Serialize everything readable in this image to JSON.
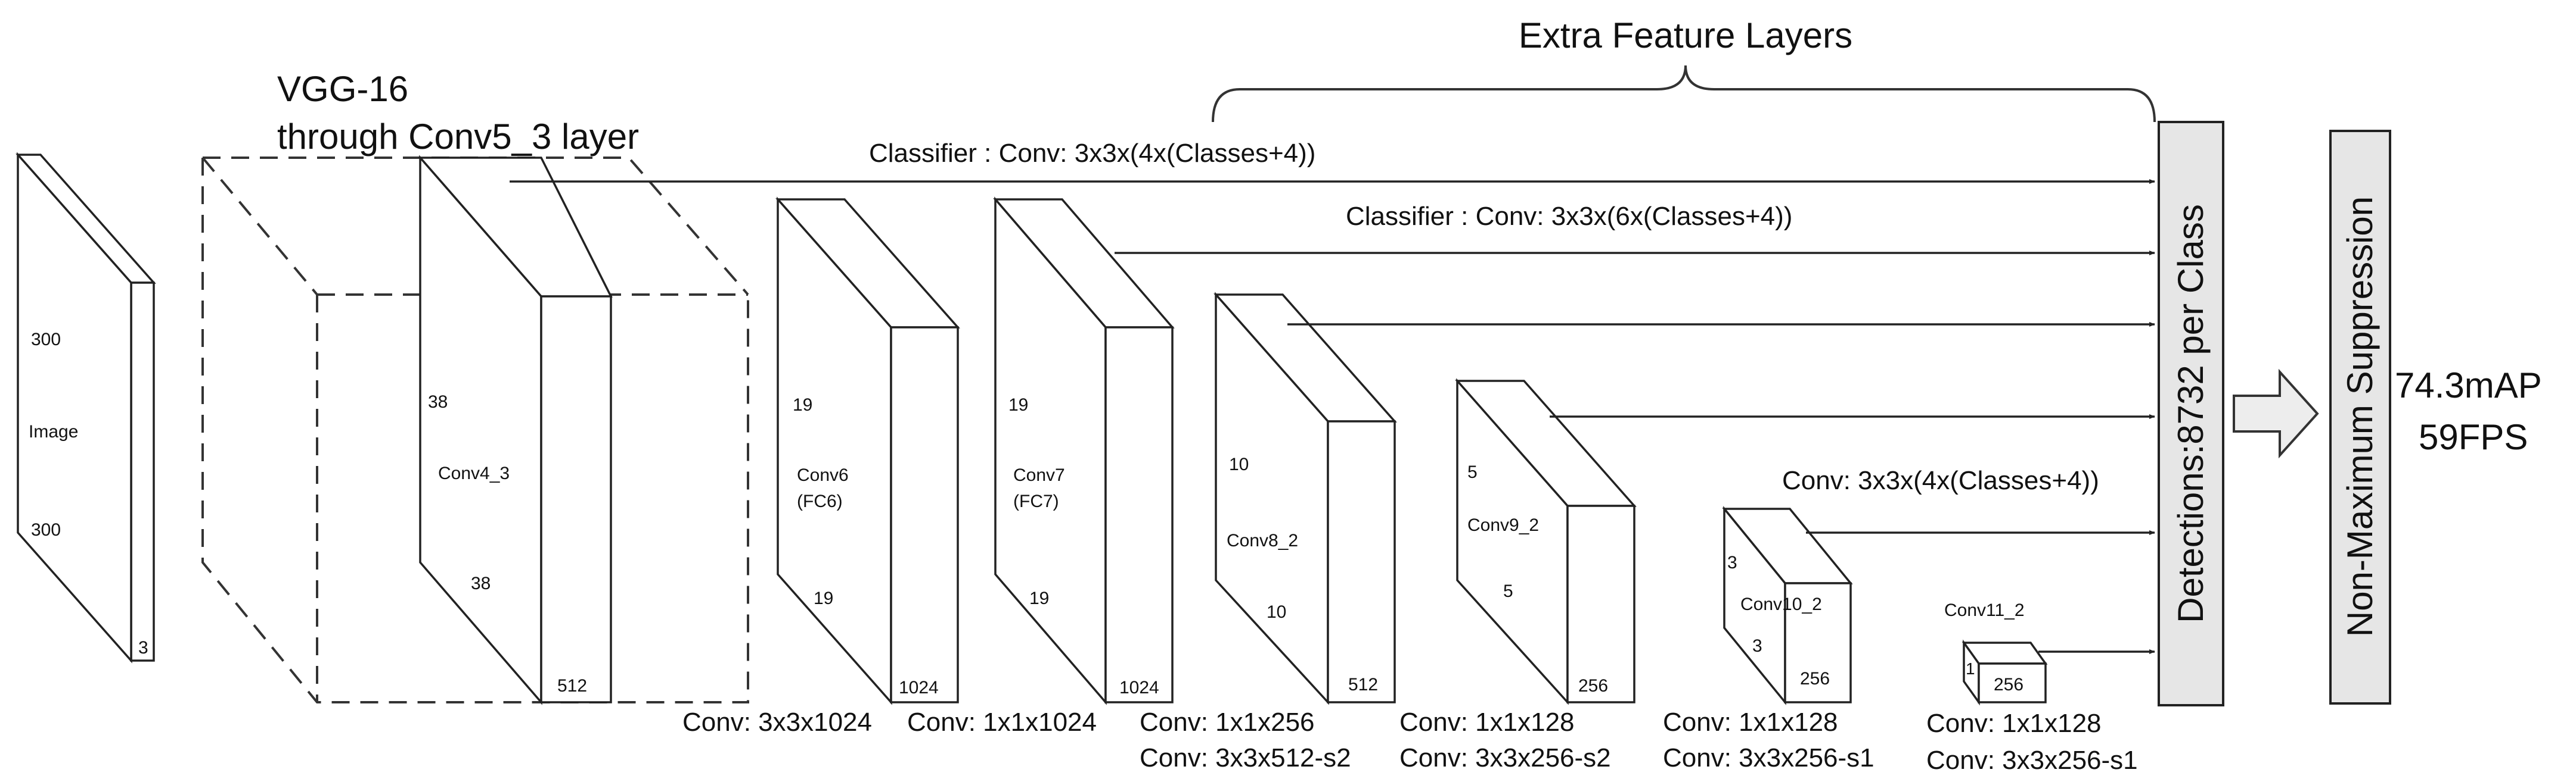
{
  "title": "Extra Feature Layers",
  "vgg": {
    "line1": "VGG-16",
    "line2": "through Conv5_3 layer"
  },
  "image_block": {
    "label": "Image",
    "height": "300",
    "width": "300",
    "depth": "3"
  },
  "blocks": {
    "conv4_3": {
      "label": "Conv4_3",
      "h": "38",
      "w": "38",
      "d": "512"
    },
    "conv6": {
      "label": "Conv6",
      "sub": "(FC6)",
      "h": "19",
      "w": "19",
      "d": "1024"
    },
    "conv7": {
      "label": "Conv7",
      "sub": "(FC7)",
      "h": "19",
      "w": "19",
      "d": "1024"
    },
    "conv8_2": {
      "label": "Conv8_2",
      "h": "10",
      "w": "10",
      "d": "512"
    },
    "conv9_2": {
      "label": "Conv9_2",
      "h": "5",
      "w": "5",
      "d": "256"
    },
    "conv10_2": {
      "label": "Conv10_2",
      "h": "3",
      "w": "3",
      "d": "256"
    },
    "conv11_2": {
      "label": "Conv11_2",
      "h": "1",
      "d": "256"
    }
  },
  "classifiers": {
    "c1": "Classifier : Conv: 3x3x(4x(Classes+4))",
    "c2": "Classifier : Conv: 3x3x(6x(Classes+4))",
    "c3": "Conv: 3x3x(4x(Classes+4))"
  },
  "captions": {
    "conv6_a": "Conv: 3x3x1024",
    "conv7_a": "Conv: 1x1x1024",
    "conv8_a": "Conv: 1x1x256",
    "conv8_b": "Conv:  3x3x512-s2",
    "conv9_a": "Conv: 1x1x128",
    "conv9_b": "Conv: 3x3x256-s2",
    "conv10_a": "Conv: 1x1x128",
    "conv10_b": "Conv: 3x3x256-s1",
    "conv11_a": "Conv: 1x1x128",
    "conv11_b": "Conv: 3x3x256-s1"
  },
  "detections": "Detections:8732  per Class",
  "nms": "Non-Maximum Suppression",
  "result": {
    "map": "74.3mAP",
    "fps": "59FPS"
  }
}
